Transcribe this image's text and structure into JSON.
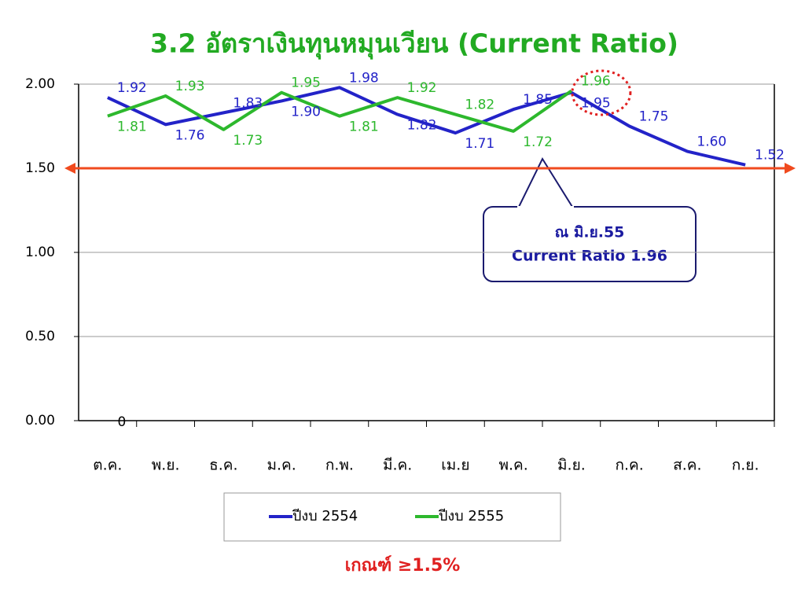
{
  "chart_data": {
    "type": "line",
    "title": "3.2 อัตราเงินทุนหมุนเวียน (Current Ratio)",
    "categories": [
      "ต.ค.",
      "พ.ย.",
      "ธ.ค.",
      "ม.ค.",
      "ก.พ.",
      "มี.ค.",
      "เม.ย",
      "พ.ค.",
      "มิ.ย.",
      "ก.ค.",
      "ส.ค.",
      "ก.ย."
    ],
    "series": [
      {
        "name": "ปีงบ 2554",
        "color": "#2323c8",
        "values": [
          1.92,
          1.76,
          1.83,
          1.9,
          1.98,
          1.82,
          1.71,
          1.85,
          1.95,
          1.75,
          1.6,
          1.52
        ],
        "value_labels": [
          "1.92",
          "1.76",
          "1.83",
          "1.90",
          "1.98",
          "1.82",
          "1.71",
          "1.85",
          "1.95",
          "1.75",
          "1.60",
          "1.52"
        ]
      },
      {
        "name": "ปีงบ 2555",
        "color": "#2db82d",
        "values": [
          1.81,
          1.93,
          1.73,
          1.95,
          1.81,
          1.92,
          1.82,
          1.72,
          1.96,
          null,
          null,
          null
        ],
        "value_labels": [
          "1.81",
          "1.93",
          "1.73",
          "1.95",
          "1.81",
          "1.92",
          "1.82",
          "1.72",
          "1.96",
          null,
          null,
          null
        ]
      }
    ],
    "ylim": [
      0,
      2
    ],
    "yticks": [
      {
        "value": 0,
        "label": "0.00"
      },
      {
        "value": 0.5,
        "label": "0.50"
      },
      {
        "value": 1,
        "label": "1.00"
      },
      {
        "value": 1.5,
        "label": "1.50"
      },
      {
        "value": 2,
        "label": "2.00"
      }
    ],
    "grid": true,
    "threshold": 1.5,
    "threshold_color": "#f04a1e",
    "stray_label": "0",
    "callout": [
      "ณ มิ.ย.55",
      "Current Ratio 1.96"
    ],
    "criterion": "เกณฑ์ ≥1.5%"
  }
}
